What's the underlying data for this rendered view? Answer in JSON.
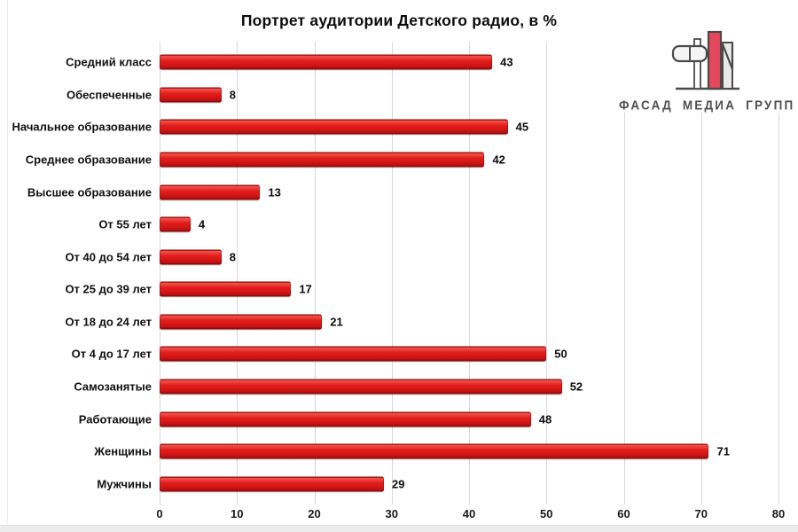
{
  "title": "Портрет аудитории Детского радио, в %",
  "logo": {
    "text": "ФАСАД МЕДИА ГРУПП",
    "colors": {
      "outline": "#4a4a4a",
      "red": "#e5485a",
      "light": "#e9e9e9",
      "pill": "#f4f4f4"
    }
  },
  "colors": {
    "bar_main": "#d81717",
    "gridline": "#d9d9d9",
    "text": "#0d0d0d"
  },
  "chart_data": {
    "type": "bar",
    "orientation": "horizontal",
    "title": "Портрет аудитории Детского радио, в %",
    "categories": [
      "Средний класс",
      "Обеспеченные",
      "Начальное образование",
      "Среднее образование",
      "Высшее образование",
      "От 55 лет",
      "От 40 до 54 лет",
      "От 25 до 39 лет",
      "От 18 до 24 лет",
      "От 4 до 17 лет",
      "Самозанятые",
      "Работающие",
      "Женщины",
      "Мужчины"
    ],
    "values": [
      43,
      8,
      45,
      42,
      13,
      4,
      8,
      17,
      21,
      50,
      52,
      48,
      71,
      29
    ],
    "data_labels": [
      43,
      8,
      45,
      42,
      13,
      4,
      8,
      17,
      21,
      50,
      52,
      48,
      71,
      29
    ],
    "xlabel": "",
    "ylabel": "",
    "xlim": [
      0,
      80
    ],
    "x_ticks": [
      0,
      10,
      20,
      30,
      40,
      50,
      60,
      70,
      80
    ],
    "x_tick_labels": [
      "0",
      "10",
      "20",
      "30",
      "40",
      "50",
      "60",
      "70",
      "80"
    ],
    "grid": "vertical-gridlines-on",
    "legend": "none",
    "bar_color": "#d81717"
  }
}
